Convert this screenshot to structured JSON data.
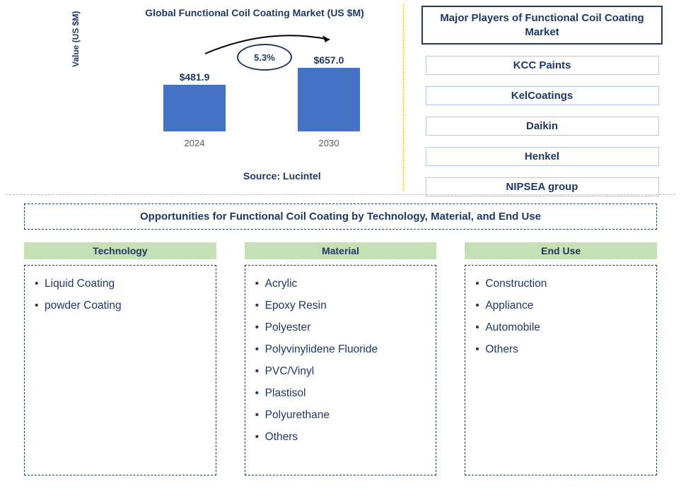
{
  "chart": {
    "title": "Global Functional Coil Coating Market (US $M)",
    "ylabel": "Value (US $M)",
    "type": "bar",
    "categories": [
      "2024",
      "2030"
    ],
    "values": [
      481.9,
      657.0
    ],
    "value_labels": [
      "$481.9",
      "$657.0"
    ],
    "value_max_for_scale": 800,
    "bar_color": "#4472c4",
    "growth_label": "5.3%",
    "title_color": "#1f3864",
    "source_label": "Source: Lucintel"
  },
  "players": {
    "title": "Major Players of Functional Coil Coating Market",
    "list": [
      "KCC Paints",
      "KelCoatings",
      "Daikin",
      "Henkel",
      "NIPSEA group"
    ]
  },
  "opportunities": {
    "title": "Opportunities for Functional Coil Coating by Technology, Material, and End Use",
    "columns": [
      {
        "head": "Technology",
        "items": [
          "Liquid Coating",
          "powder Coating"
        ]
      },
      {
        "head": "Material",
        "items": [
          "Acrylic",
          "Epoxy Resin",
          "Polyester",
          "Polyvinylidene Fluoride",
          "PVC/Vinyl",
          "Plastisol",
          "Polyurethane",
          "Others"
        ]
      },
      {
        "head": "End Use",
        "items": [
          "Construction",
          "Appliance",
          "Automobile",
          "Others"
        ]
      }
    ]
  },
  "style": {
    "header_green": "#c5e0b4",
    "border_navy": "#1f3864",
    "divider_gold": "#ffc000",
    "chip_border": "#b4c6e7"
  }
}
